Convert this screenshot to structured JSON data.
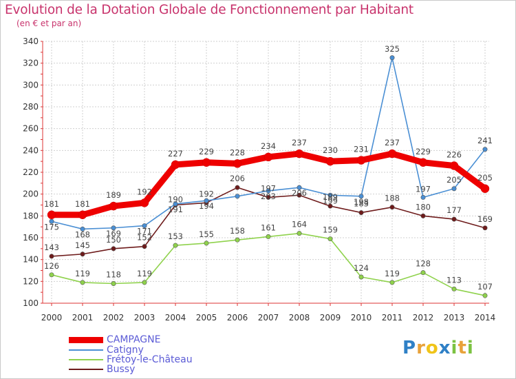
{
  "header": {
    "title": "Evolution de la Dotation Globale de Fonctionnement par Habitant",
    "subtitle": "(en € et par an)"
  },
  "logo": {
    "text": "Proxiti",
    "letters": [
      "P",
      "r",
      "o",
      "x",
      "i",
      "t",
      "i"
    ],
    "colors": [
      "#2f80c6",
      "#e8a23a",
      "#f0c419",
      "#2f80c6",
      "#7cc242",
      "#e8a23a",
      "#7cc242"
    ]
  },
  "chart_data": {
    "type": "line",
    "title": "Evolution de la Dotation Globale de Fonctionnement par Habitant",
    "subtitle": "(en € et par an)",
    "xlabel": "",
    "ylabel": "",
    "ylim": [
      100,
      340
    ],
    "yticks": [
      100,
      120,
      140,
      160,
      180,
      200,
      220,
      240,
      260,
      280,
      300,
      320,
      340
    ],
    "grid": true,
    "legend_position": "bottom-left",
    "x": [
      "2000",
      "2001",
      "2002",
      "2003",
      "2004",
      "2005",
      "2006",
      "2007",
      "2008",
      "2009",
      "2010",
      "2011",
      "2012",
      "2013",
      "2014"
    ],
    "series": [
      {
        "name": "Frétoy-le-Château",
        "color": "#8fd24c",
        "values": [
          126,
          119,
          118,
          119,
          153,
          155,
          158,
          161,
          164,
          159,
          124,
          119,
          128,
          113,
          107
        ]
      },
      {
        "name": "Bussy",
        "color": "#6e1b1b",
        "values": [
          143,
          145,
          150,
          152,
          190,
          192,
          206,
          197,
          199,
          189,
          183,
          188,
          180,
          177,
          169
        ]
      },
      {
        "name": "Catigny",
        "color": "#4a8fd4",
        "values": [
          175,
          168,
          169,
          171,
          191,
          194,
          198,
          203,
          206,
          199,
          198,
          325,
          197,
          205,
          241
        ]
      },
      {
        "name": "CAMPAGNE",
        "color": "#ee0000",
        "values": [
          181,
          181,
          189,
          192,
          227,
          229,
          228,
          234,
          237,
          230,
          231,
          237,
          229,
          226,
          205
        ]
      }
    ],
    "labels_shown": {
      "CAMPAGNE": [
        181,
        181,
        189,
        192,
        227,
        229,
        228,
        234,
        237,
        230,
        231,
        237,
        229,
        226,
        205
      ],
      "Catigny": [
        175,
        168,
        169,
        171,
        191,
        194,
        null,
        203,
        206,
        199,
        198,
        325,
        197,
        205,
        241
      ],
      "Frétoy-le-Château": [
        126,
        119,
        118,
        119,
        153,
        155,
        158,
        161,
        164,
        159,
        124,
        119,
        128,
        113,
        107
      ],
      "Bussy": [
        143,
        145,
        150,
        152,
        190,
        192,
        206,
        197,
        null,
        189,
        183,
        188,
        180,
        177,
        169
      ]
    }
  },
  "legend": [
    {
      "label": "CAMPAGNE",
      "color": "#ee0000"
    },
    {
      "label": "Catigny",
      "color": "#4a8fd4"
    },
    {
      "label": "Frétoy-le-Château",
      "color": "#8fd24c"
    },
    {
      "label": "Bussy",
      "color": "#6e1b1b"
    }
  ]
}
